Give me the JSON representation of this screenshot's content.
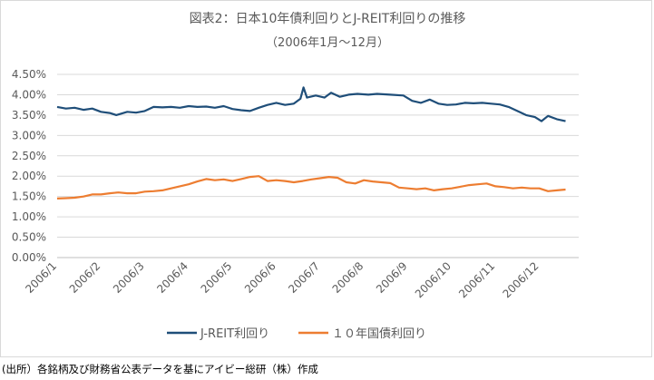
{
  "chart_data": {
    "type": "line",
    "title": "図表2：日本10年債利回りとJ-REIT利回りの推移",
    "subtitle": "（2006年1月～12月）",
    "xlabel": "",
    "ylabel": "",
    "ylim": [
      0,
      4.5
    ],
    "yticks": [
      "4.50%",
      "4.00%",
      "3.50%",
      "3.00%",
      "2.50%",
      "2.00%",
      "1.50%",
      "1.00%",
      "0.50%",
      "0.00%"
    ],
    "ytick_values": [
      4.5,
      4.0,
      3.5,
      3.0,
      2.5,
      2.0,
      1.5,
      1.0,
      0.5,
      0.0
    ],
    "categories": [
      "2006/1",
      "2006/2",
      "2006/3",
      "2006/4",
      "2006/5",
      "2006/6",
      "2006/7",
      "2006/8",
      "2006/9",
      "2006/10",
      "2006/11",
      "2006/12"
    ],
    "grid": true,
    "legend_position": "bottom",
    "x_fraction_note": "x values are fractional month index (1.0 = start of 2006/1)",
    "series": [
      {
        "name": "J-REIT利回り",
        "color": "#1f4e79",
        "x": [
          1.0,
          1.2,
          1.4,
          1.6,
          1.8,
          2.0,
          2.2,
          2.35,
          2.6,
          2.8,
          3.0,
          3.2,
          3.4,
          3.6,
          3.8,
          4.0,
          4.2,
          4.4,
          4.6,
          4.8,
          5.0,
          5.2,
          5.4,
          5.6,
          5.8,
          6.0,
          6.2,
          6.4,
          6.55,
          6.62,
          6.7,
          6.9,
          7.1,
          7.25,
          7.45,
          7.65,
          7.85,
          8.1,
          8.3,
          8.6,
          8.9,
          9.1,
          9.3,
          9.5,
          9.7,
          9.9,
          10.1,
          10.3,
          10.5,
          10.7,
          10.9,
          11.1,
          11.3,
          11.5,
          11.7,
          11.9,
          12.05,
          12.2,
          12.4,
          12.6
        ],
        "values": [
          3.7,
          3.66,
          3.68,
          3.63,
          3.66,
          3.58,
          3.55,
          3.5,
          3.58,
          3.56,
          3.6,
          3.7,
          3.69,
          3.7,
          3.68,
          3.72,
          3.7,
          3.71,
          3.68,
          3.72,
          3.65,
          3.62,
          3.6,
          3.68,
          3.75,
          3.8,
          3.75,
          3.78,
          3.9,
          4.18,
          3.93,
          3.98,
          3.93,
          4.05,
          3.95,
          4.0,
          4.02,
          4.0,
          4.02,
          4.0,
          3.98,
          3.85,
          3.8,
          3.88,
          3.78,
          3.75,
          3.76,
          3.8,
          3.79,
          3.8,
          3.78,
          3.76,
          3.7,
          3.6,
          3.5,
          3.45,
          3.35,
          3.48,
          3.4,
          3.35
        ]
      },
      {
        "name": "１０年国債利回り",
        "color": "#ed7d31",
        "x": [
          1.0,
          1.2,
          1.4,
          1.6,
          1.8,
          2.0,
          2.2,
          2.4,
          2.6,
          2.8,
          3.0,
          3.2,
          3.4,
          3.6,
          3.8,
          4.0,
          4.2,
          4.4,
          4.6,
          4.8,
          5.0,
          5.2,
          5.4,
          5.6,
          5.8,
          6.0,
          6.2,
          6.4,
          6.6,
          6.8,
          7.0,
          7.2,
          7.4,
          7.6,
          7.8,
          8.0,
          8.2,
          8.4,
          8.6,
          8.8,
          9.0,
          9.2,
          9.4,
          9.6,
          9.8,
          10.0,
          10.2,
          10.4,
          10.6,
          10.8,
          11.0,
          11.2,
          11.4,
          11.6,
          11.8,
          12.0,
          12.2,
          12.4,
          12.6
        ],
        "values": [
          1.45,
          1.46,
          1.47,
          1.5,
          1.55,
          1.55,
          1.58,
          1.6,
          1.58,
          1.58,
          1.62,
          1.63,
          1.65,
          1.7,
          1.75,
          1.8,
          1.87,
          1.93,
          1.9,
          1.92,
          1.88,
          1.93,
          1.98,
          2.0,
          1.88,
          1.9,
          1.88,
          1.85,
          1.88,
          1.92,
          1.95,
          1.98,
          1.96,
          1.85,
          1.82,
          1.9,
          1.87,
          1.85,
          1.83,
          1.72,
          1.7,
          1.68,
          1.7,
          1.65,
          1.68,
          1.7,
          1.74,
          1.78,
          1.8,
          1.82,
          1.75,
          1.73,
          1.7,
          1.72,
          1.7,
          1.7,
          1.63,
          1.65,
          1.67
        ]
      }
    ]
  },
  "source_note": "(出所）各銘柄及び財務省公表データを基にアイビー総研（株）作成"
}
